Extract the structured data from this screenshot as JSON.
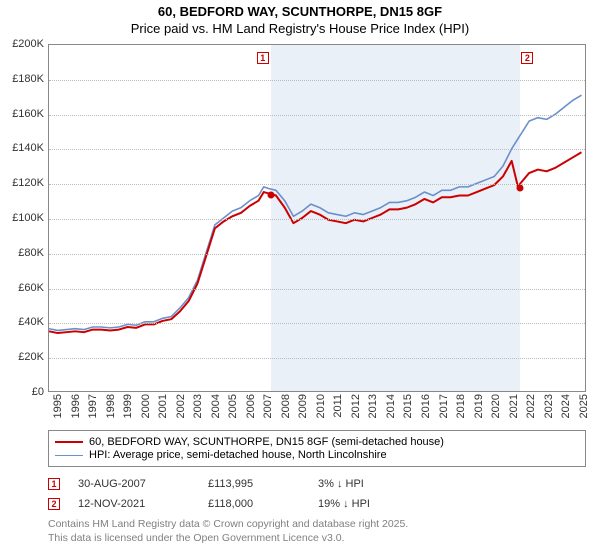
{
  "title": {
    "line1": "60, BEDFORD WAY, SCUNTHORPE, DN15 8GF",
    "line2": "Price paid vs. HM Land Registry's House Price Index (HPI)"
  },
  "chart": {
    "type": "line",
    "background_color": "#ffffff",
    "grid_color": "#bbbbbb",
    "shade_color": "#dbe6f2",
    "x_years": [
      1995,
      1996,
      1997,
      1998,
      1999,
      2000,
      2001,
      2002,
      2003,
      2004,
      2005,
      2006,
      2007,
      2008,
      2009,
      2010,
      2011,
      2012,
      2013,
      2014,
      2015,
      2016,
      2017,
      2018,
      2019,
      2020,
      2021,
      2022,
      2023,
      2024,
      2025
    ],
    "x_range": [
      1995,
      2025.7
    ],
    "ylim": [
      0,
      200000
    ],
    "ytick_step": 20000,
    "ytick_prefix": "£",
    "ytick_suffix": "K",
    "series": [
      {
        "name": "hpi",
        "label": "HPI: Average price, semi-detached house, North Lincolnshire",
        "color": "#6b8fc9",
        "width": 1.6,
        "data": [
          [
            1995,
            36000
          ],
          [
            1995.5,
            35000
          ],
          [
            1996,
            35500
          ],
          [
            1996.5,
            36000
          ],
          [
            1997,
            35500
          ],
          [
            1997.5,
            37000
          ],
          [
            1998,
            37000
          ],
          [
            1998.5,
            36500
          ],
          [
            1999,
            37000
          ],
          [
            1999.5,
            38500
          ],
          [
            2000,
            38000
          ],
          [
            2000.5,
            40000
          ],
          [
            2001,
            40000
          ],
          [
            2001.5,
            42000
          ],
          [
            2002,
            43000
          ],
          [
            2002.5,
            48000
          ],
          [
            2003,
            54000
          ],
          [
            2003.5,
            64000
          ],
          [
            2004,
            80000
          ],
          [
            2004.5,
            96000
          ],
          [
            2005,
            100000
          ],
          [
            2005.5,
            104000
          ],
          [
            2006,
            106000
          ],
          [
            2006.5,
            110000
          ],
          [
            2007,
            113000
          ],
          [
            2007.3,
            118000
          ],
          [
            2007.6,
            117000
          ],
          [
            2008,
            116000
          ],
          [
            2008.5,
            110000
          ],
          [
            2009,
            101000
          ],
          [
            2009.5,
            104000
          ],
          [
            2010,
            108000
          ],
          [
            2010.5,
            106000
          ],
          [
            2011,
            103000
          ],
          [
            2011.5,
            102000
          ],
          [
            2012,
            101000
          ],
          [
            2012.5,
            103000
          ],
          [
            2013,
            102000
          ],
          [
            2013.5,
            104000
          ],
          [
            2014,
            106000
          ],
          [
            2014.5,
            109000
          ],
          [
            2015,
            109000
          ],
          [
            2015.5,
            110000
          ],
          [
            2016,
            112000
          ],
          [
            2016.5,
            115000
          ],
          [
            2017,
            113000
          ],
          [
            2017.5,
            116000
          ],
          [
            2018,
            116000
          ],
          [
            2018.5,
            118000
          ],
          [
            2019,
            118000
          ],
          [
            2019.5,
            120000
          ],
          [
            2020,
            122000
          ],
          [
            2020.5,
            124000
          ],
          [
            2021,
            130000
          ],
          [
            2021.5,
            140000
          ],
          [
            2021.87,
            146000
          ],
          [
            2022,
            148000
          ],
          [
            2022.5,
            156000
          ],
          [
            2023,
            158000
          ],
          [
            2023.5,
            157000
          ],
          [
            2024,
            160000
          ],
          [
            2024.5,
            164000
          ],
          [
            2025,
            168000
          ],
          [
            2025.5,
            171000
          ]
        ]
      },
      {
        "name": "price_paid",
        "label": "60, BEDFORD WAY, SCUNTHORPE, DN15 8GF (semi-detached house)",
        "color": "#cc0000",
        "width": 2.0,
        "data": [
          [
            1995,
            34500
          ],
          [
            1995.5,
            33500
          ],
          [
            1996,
            34000
          ],
          [
            1996.5,
            34500
          ],
          [
            1997,
            34000
          ],
          [
            1997.5,
            35500
          ],
          [
            1998,
            35500
          ],
          [
            1998.5,
            35000
          ],
          [
            1999,
            35500
          ],
          [
            1999.5,
            37000
          ],
          [
            2000,
            36500
          ],
          [
            2000.5,
            38500
          ],
          [
            2001,
            38500
          ],
          [
            2001.5,
            40500
          ],
          [
            2002,
            41500
          ],
          [
            2002.5,
            46000
          ],
          [
            2003,
            52000
          ],
          [
            2003.5,
            62000
          ],
          [
            2004,
            78000
          ],
          [
            2004.5,
            94000
          ],
          [
            2005,
            98000
          ],
          [
            2005.5,
            101000
          ],
          [
            2006,
            103000
          ],
          [
            2006.5,
            107000
          ],
          [
            2007,
            110000
          ],
          [
            2007.3,
            115000
          ],
          [
            2007.66,
            113995
          ],
          [
            2008,
            113000
          ],
          [
            2008.5,
            106000
          ],
          [
            2009,
            97000
          ],
          [
            2009.5,
            100000
          ],
          [
            2010,
            104000
          ],
          [
            2010.5,
            102000
          ],
          [
            2011,
            99000
          ],
          [
            2011.5,
            98000
          ],
          [
            2012,
            97000
          ],
          [
            2012.5,
            99000
          ],
          [
            2013,
            98000
          ],
          [
            2013.5,
            100000
          ],
          [
            2014,
            102000
          ],
          [
            2014.5,
            105000
          ],
          [
            2015,
            105000
          ],
          [
            2015.5,
            106000
          ],
          [
            2016,
            108000
          ],
          [
            2016.5,
            111000
          ],
          [
            2017,
            109000
          ],
          [
            2017.5,
            112000
          ],
          [
            2018,
            112000
          ],
          [
            2018.5,
            113000
          ],
          [
            2019,
            113000
          ],
          [
            2019.5,
            115000
          ],
          [
            2020,
            117000
          ],
          [
            2020.5,
            119000
          ],
          [
            2021,
            124000
          ],
          [
            2021.5,
            133000
          ],
          [
            2021.86,
            118000
          ],
          [
            2021.865,
            118000
          ],
          [
            2022,
            120000
          ],
          [
            2022.5,
            126000
          ],
          [
            2023,
            128000
          ],
          [
            2023.5,
            127000
          ],
          [
            2024,
            129000
          ],
          [
            2024.5,
            132000
          ],
          [
            2025,
            135000
          ],
          [
            2025.5,
            138000
          ]
        ]
      }
    ],
    "shade_ranges": [
      [
        2007.66,
        2021.87
      ]
    ],
    "markers": [
      {
        "id": "1",
        "x": 2007.66,
        "y": 113995,
        "box_x": 2007.2,
        "box_y": 196000
      },
      {
        "id": "2",
        "x": 2021.87,
        "y": 118000,
        "box_x": 2022.3,
        "box_y": 196000
      }
    ]
  },
  "legend": {
    "rows": [
      {
        "color": "#cc0000",
        "width": 2.0,
        "label": "60, BEDFORD WAY, SCUNTHORPE, DN15 8GF (semi-detached house)"
      },
      {
        "color": "#6b8fc9",
        "width": 1.6,
        "label": "HPI: Average price, semi-detached house, North Lincolnshire"
      }
    ]
  },
  "transactions": [
    {
      "id": "1",
      "date": "30-AUG-2007",
      "price": "£113,995",
      "pct": "3% ↓ HPI"
    },
    {
      "id": "2",
      "date": "12-NOV-2021",
      "price": "£118,000",
      "pct": "19% ↓ HPI"
    }
  ],
  "footer": {
    "line1": "Contains HM Land Registry data © Crown copyright and database right 2025.",
    "line2": "This data is licensed under the Open Government Licence v3.0."
  }
}
